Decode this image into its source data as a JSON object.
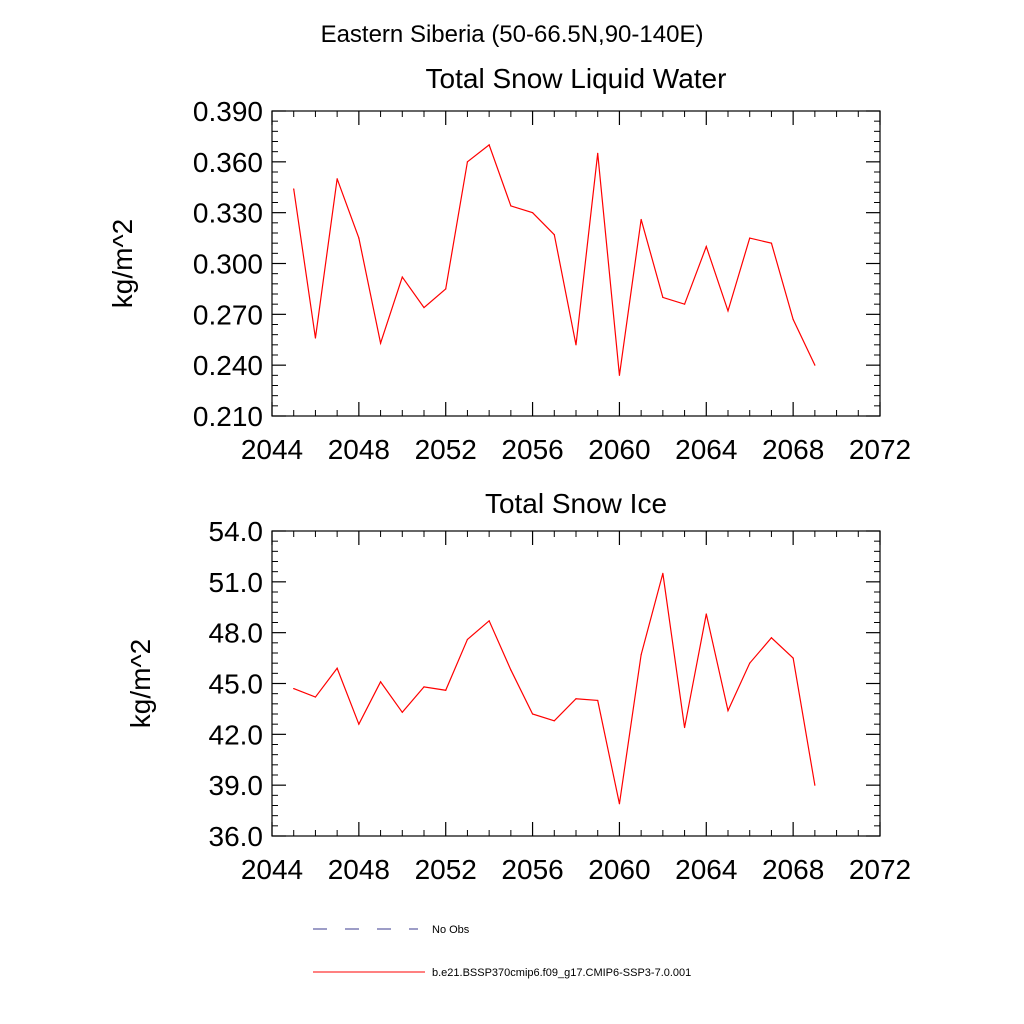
{
  "figure_title": "Eastern Siberia (50-66.5N,90-140E)",
  "colors": {
    "model_line": "#ff0000",
    "obs_line": "#3b3b8f",
    "axis": "#000000"
  },
  "legend": {
    "placement": "bottom",
    "entries": [
      {
        "label": "No Obs",
        "style": "dashed",
        "color": "#3b3b8f"
      },
      {
        "label": "b.e21.BSSP370cmip6.f09_g17.CMIP6-SSP3-7.0.001",
        "style": "solid",
        "color": "#ff0000"
      }
    ]
  },
  "chart_data": [
    {
      "type": "line",
      "title": "Total Snow Liquid Water",
      "xlabel": "",
      "ylabel": "kg/m^2",
      "xlim": [
        2044,
        2072
      ],
      "ylim": [
        0.21,
        0.39
      ],
      "x_ticks": [
        2044,
        2048,
        2052,
        2056,
        2060,
        2064,
        2068,
        2072
      ],
      "x_tick_labels": [
        "2044",
        "2048",
        "2052",
        "2056",
        "2060",
        "2064",
        "2068",
        "2072"
      ],
      "y_ticks": [
        0.21,
        0.24,
        0.27,
        0.3,
        0.33,
        0.36,
        0.39
      ],
      "y_tick_labels": [
        "0.210",
        "0.240",
        "0.270",
        "0.300",
        "0.330",
        "0.360",
        "0.390"
      ],
      "x_minor_step": 1,
      "y_minor_step": 0.006,
      "grid": false,
      "x": [
        2045,
        2046,
        2047,
        2048,
        2049,
        2050,
        2051,
        2052,
        2053,
        2054,
        2055,
        2056,
        2057,
        2058,
        2059,
        2060,
        2061,
        2062,
        2063,
        2064,
        2065,
        2066,
        2067,
        2068,
        2069
      ],
      "series": [
        {
          "name": "b.e21.BSSP370cmip6.f09_g17.CMIP6-SSP3-7.0.001",
          "values": [
            0.344,
            0.256,
            0.35,
            0.315,
            0.253,
            0.292,
            0.274,
            0.285,
            0.36,
            0.37,
            0.334,
            0.33,
            0.317,
            0.252,
            0.365,
            0.234,
            0.326,
            0.28,
            0.276,
            0.31,
            0.272,
            0.315,
            0.312,
            0.267,
            0.24
          ]
        }
      ]
    },
    {
      "type": "line",
      "title": "Total Snow Ice",
      "xlabel": "",
      "ylabel": "kg/m^2",
      "xlim": [
        2044,
        2072
      ],
      "ylim": [
        36.0,
        54.0
      ],
      "x_ticks": [
        2044,
        2048,
        2052,
        2056,
        2060,
        2064,
        2068,
        2072
      ],
      "x_tick_labels": [
        "2044",
        "2048",
        "2052",
        "2056",
        "2060",
        "2064",
        "2068",
        "2072"
      ],
      "y_ticks": [
        36.0,
        39.0,
        42.0,
        45.0,
        48.0,
        51.0,
        54.0
      ],
      "y_tick_labels": [
        "36.0",
        "39.0",
        "42.0",
        "45.0",
        "48.0",
        "51.0",
        "54.0"
      ],
      "x_minor_step": 1,
      "y_minor_step": 0.6,
      "grid": false,
      "x": [
        2045,
        2046,
        2047,
        2048,
        2049,
        2050,
        2051,
        2052,
        2053,
        2054,
        2055,
        2056,
        2057,
        2058,
        2059,
        2060,
        2061,
        2062,
        2063,
        2064,
        2065,
        2066,
        2067,
        2068,
        2069
      ],
      "series": [
        {
          "name": "b.e21.BSSP370cmip6.f09_g17.CMIP6-SSP3-7.0.001",
          "values": [
            44.7,
            44.2,
            45.9,
            42.6,
            45.1,
            43.3,
            44.8,
            44.6,
            47.6,
            48.7,
            45.8,
            43.2,
            42.8,
            44.1,
            44.0,
            37.9,
            46.7,
            51.5,
            42.4,
            49.1,
            43.4,
            46.2,
            47.7,
            46.5,
            39.0
          ]
        }
      ]
    }
  ]
}
